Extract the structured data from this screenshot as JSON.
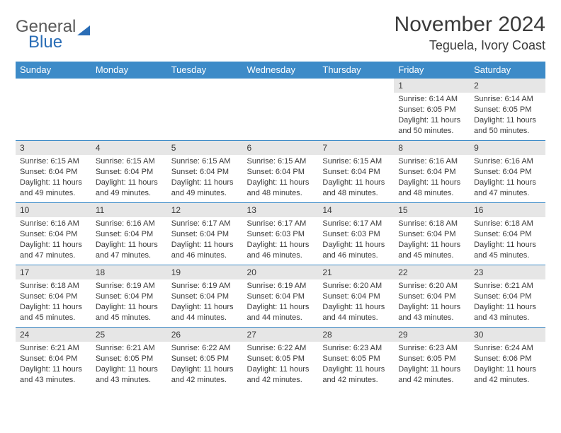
{
  "logo": {
    "word1": "General",
    "word2": "Blue"
  },
  "title": "November 2024",
  "location": "Teguela, Ivory Coast",
  "colors": {
    "header_bg": "#3d8bc8",
    "header_text": "#ffffff",
    "daynum_bg": "#e6e6e6",
    "text": "#3a3a3a",
    "rule": "#3d8bc8",
    "logo_blue": "#2a6db6"
  },
  "weekdays": [
    "Sunday",
    "Monday",
    "Tuesday",
    "Wednesday",
    "Thursday",
    "Friday",
    "Saturday"
  ],
  "weeks": [
    [
      {
        "n": "",
        "sr": "",
        "ss": "",
        "dl": ""
      },
      {
        "n": "",
        "sr": "",
        "ss": "",
        "dl": ""
      },
      {
        "n": "",
        "sr": "",
        "ss": "",
        "dl": ""
      },
      {
        "n": "",
        "sr": "",
        "ss": "",
        "dl": ""
      },
      {
        "n": "",
        "sr": "",
        "ss": "",
        "dl": ""
      },
      {
        "n": "1",
        "sr": "Sunrise: 6:14 AM",
        "ss": "Sunset: 6:05 PM",
        "dl": "Daylight: 11 hours and 50 minutes."
      },
      {
        "n": "2",
        "sr": "Sunrise: 6:14 AM",
        "ss": "Sunset: 6:05 PM",
        "dl": "Daylight: 11 hours and 50 minutes."
      }
    ],
    [
      {
        "n": "3",
        "sr": "Sunrise: 6:15 AM",
        "ss": "Sunset: 6:04 PM",
        "dl": "Daylight: 11 hours and 49 minutes."
      },
      {
        "n": "4",
        "sr": "Sunrise: 6:15 AM",
        "ss": "Sunset: 6:04 PM",
        "dl": "Daylight: 11 hours and 49 minutes."
      },
      {
        "n": "5",
        "sr": "Sunrise: 6:15 AM",
        "ss": "Sunset: 6:04 PM",
        "dl": "Daylight: 11 hours and 49 minutes."
      },
      {
        "n": "6",
        "sr": "Sunrise: 6:15 AM",
        "ss": "Sunset: 6:04 PM",
        "dl": "Daylight: 11 hours and 48 minutes."
      },
      {
        "n": "7",
        "sr": "Sunrise: 6:15 AM",
        "ss": "Sunset: 6:04 PM",
        "dl": "Daylight: 11 hours and 48 minutes."
      },
      {
        "n": "8",
        "sr": "Sunrise: 6:16 AM",
        "ss": "Sunset: 6:04 PM",
        "dl": "Daylight: 11 hours and 48 minutes."
      },
      {
        "n": "9",
        "sr": "Sunrise: 6:16 AM",
        "ss": "Sunset: 6:04 PM",
        "dl": "Daylight: 11 hours and 47 minutes."
      }
    ],
    [
      {
        "n": "10",
        "sr": "Sunrise: 6:16 AM",
        "ss": "Sunset: 6:04 PM",
        "dl": "Daylight: 11 hours and 47 minutes."
      },
      {
        "n": "11",
        "sr": "Sunrise: 6:16 AM",
        "ss": "Sunset: 6:04 PM",
        "dl": "Daylight: 11 hours and 47 minutes."
      },
      {
        "n": "12",
        "sr": "Sunrise: 6:17 AM",
        "ss": "Sunset: 6:04 PM",
        "dl": "Daylight: 11 hours and 46 minutes."
      },
      {
        "n": "13",
        "sr": "Sunrise: 6:17 AM",
        "ss": "Sunset: 6:03 PM",
        "dl": "Daylight: 11 hours and 46 minutes."
      },
      {
        "n": "14",
        "sr": "Sunrise: 6:17 AM",
        "ss": "Sunset: 6:03 PM",
        "dl": "Daylight: 11 hours and 46 minutes."
      },
      {
        "n": "15",
        "sr": "Sunrise: 6:18 AM",
        "ss": "Sunset: 6:04 PM",
        "dl": "Daylight: 11 hours and 45 minutes."
      },
      {
        "n": "16",
        "sr": "Sunrise: 6:18 AM",
        "ss": "Sunset: 6:04 PM",
        "dl": "Daylight: 11 hours and 45 minutes."
      }
    ],
    [
      {
        "n": "17",
        "sr": "Sunrise: 6:18 AM",
        "ss": "Sunset: 6:04 PM",
        "dl": "Daylight: 11 hours and 45 minutes."
      },
      {
        "n": "18",
        "sr": "Sunrise: 6:19 AM",
        "ss": "Sunset: 6:04 PM",
        "dl": "Daylight: 11 hours and 45 minutes."
      },
      {
        "n": "19",
        "sr": "Sunrise: 6:19 AM",
        "ss": "Sunset: 6:04 PM",
        "dl": "Daylight: 11 hours and 44 minutes."
      },
      {
        "n": "20",
        "sr": "Sunrise: 6:19 AM",
        "ss": "Sunset: 6:04 PM",
        "dl": "Daylight: 11 hours and 44 minutes."
      },
      {
        "n": "21",
        "sr": "Sunrise: 6:20 AM",
        "ss": "Sunset: 6:04 PM",
        "dl": "Daylight: 11 hours and 44 minutes."
      },
      {
        "n": "22",
        "sr": "Sunrise: 6:20 AM",
        "ss": "Sunset: 6:04 PM",
        "dl": "Daylight: 11 hours and 43 minutes."
      },
      {
        "n": "23",
        "sr": "Sunrise: 6:21 AM",
        "ss": "Sunset: 6:04 PM",
        "dl": "Daylight: 11 hours and 43 minutes."
      }
    ],
    [
      {
        "n": "24",
        "sr": "Sunrise: 6:21 AM",
        "ss": "Sunset: 6:04 PM",
        "dl": "Daylight: 11 hours and 43 minutes."
      },
      {
        "n": "25",
        "sr": "Sunrise: 6:21 AM",
        "ss": "Sunset: 6:05 PM",
        "dl": "Daylight: 11 hours and 43 minutes."
      },
      {
        "n": "26",
        "sr": "Sunrise: 6:22 AM",
        "ss": "Sunset: 6:05 PM",
        "dl": "Daylight: 11 hours and 42 minutes."
      },
      {
        "n": "27",
        "sr": "Sunrise: 6:22 AM",
        "ss": "Sunset: 6:05 PM",
        "dl": "Daylight: 11 hours and 42 minutes."
      },
      {
        "n": "28",
        "sr": "Sunrise: 6:23 AM",
        "ss": "Sunset: 6:05 PM",
        "dl": "Daylight: 11 hours and 42 minutes."
      },
      {
        "n": "29",
        "sr": "Sunrise: 6:23 AM",
        "ss": "Sunset: 6:05 PM",
        "dl": "Daylight: 11 hours and 42 minutes."
      },
      {
        "n": "30",
        "sr": "Sunrise: 6:24 AM",
        "ss": "Sunset: 6:06 PM",
        "dl": "Daylight: 11 hours and 42 minutes."
      }
    ]
  ]
}
